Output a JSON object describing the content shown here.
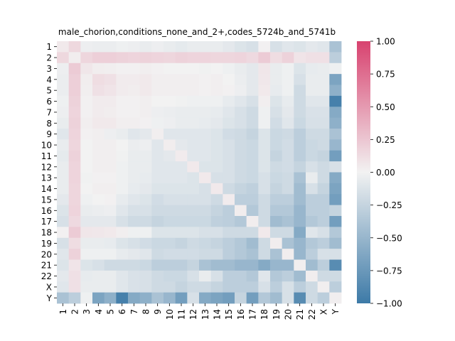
{
  "chart_data": {
    "type": "heatmap",
    "title": "male_chorion,conditions_none_and_2+,codes_5724b_and_5741b",
    "xlabel": "",
    "ylabel": "",
    "labels": [
      "1",
      "2",
      "3",
      "4",
      "5",
      "6",
      "7",
      "8",
      "9",
      "10",
      "11",
      "12",
      "13",
      "14",
      "15",
      "16",
      "17",
      "18",
      "19",
      "20",
      "21",
      "22",
      "X",
      "Y"
    ],
    "colorbar": {
      "range": [
        -1.0,
        1.0
      ],
      "ticks": [
        -1.0,
        -0.75,
        -0.5,
        -0.25,
        0.0,
        0.25,
        0.5,
        0.75,
        1.0
      ],
      "tick_labels": [
        "−1.00",
        "−0.75",
        "−0.50",
        "−0.25",
        "0.00",
        "0.25",
        "0.50",
        "0.75",
        "1.00"
      ]
    },
    "colormap": {
      "negative": "#3d7aa7",
      "center": "#f2f2f2",
      "positive": "#d8426f"
    },
    "values": [
      [
        0.05,
        0.15,
        -0.03,
        -0.04,
        -0.04,
        -0.02,
        -0.03,
        -0.05,
        -0.03,
        -0.05,
        -0.07,
        -0.05,
        -0.05,
        -0.05,
        -0.08,
        -0.12,
        -0.15,
        0.01,
        -0.15,
        -0.1,
        -0.12,
        -0.08,
        -0.1,
        -0.4
      ],
      [
        0.15,
        0.03,
        0.16,
        0.2,
        0.2,
        0.18,
        0.17,
        0.18,
        0.17,
        0.16,
        0.18,
        0.17,
        0.17,
        0.16,
        0.16,
        0.17,
        0.14,
        0.22,
        0.12,
        0.18,
        0.08,
        0.1,
        0.1,
        -0.3
      ],
      [
        -0.03,
        0.22,
        0.07,
        0.03,
        0.02,
        0.01,
        0.01,
        0.02,
        0.01,
        0.0,
        0.0,
        0.0,
        -0.01,
        0.0,
        -0.02,
        -0.05,
        -0.08,
        0.07,
        -0.05,
        -0.02,
        -0.12,
        -0.06,
        -0.05,
        -0.02
      ],
      [
        -0.04,
        0.2,
        0.03,
        0.12,
        0.1,
        0.04,
        0.04,
        0.05,
        0.02,
        0.02,
        0.02,
        0.02,
        0.01,
        0.02,
        0.0,
        -0.04,
        -0.08,
        0.06,
        -0.05,
        -0.02,
        -0.15,
        -0.05,
        -0.05,
        -0.65
      ],
      [
        -0.04,
        0.2,
        0.02,
        0.1,
        0.08,
        0.04,
        0.03,
        0.05,
        0.02,
        0.02,
        0.02,
        0.02,
        0.01,
        0.02,
        0.01,
        -0.03,
        -0.08,
        0.05,
        -0.06,
        -0.02,
        -0.2,
        -0.05,
        -0.05,
        -0.55
      ],
      [
        -0.02,
        0.18,
        0.01,
        0.04,
        0.04,
        0.01,
        0.01,
        0.02,
        0.0,
        0.0,
        -0.01,
        -0.02,
        -0.02,
        -0.02,
        -0.06,
        -0.1,
        -0.15,
        0.02,
        -0.12,
        -0.06,
        -0.2,
        -0.1,
        -0.1,
        -0.95
      ],
      [
        -0.03,
        0.17,
        0.01,
        0.04,
        0.03,
        0.01,
        0.01,
        0.02,
        -0.03,
        -0.04,
        -0.05,
        -0.05,
        -0.05,
        -0.06,
        -0.1,
        -0.15,
        -0.2,
        -0.02,
        -0.15,
        -0.08,
        -0.2,
        -0.14,
        -0.14,
        -0.6
      ],
      [
        -0.05,
        0.18,
        0.02,
        0.05,
        0.05,
        0.02,
        0.02,
        0.01,
        -0.02,
        -0.03,
        -0.05,
        -0.05,
        -0.06,
        -0.08,
        -0.12,
        -0.15,
        -0.2,
        -0.02,
        -0.18,
        -0.1,
        -0.22,
        -0.15,
        -0.15,
        -0.55
      ],
      [
        -0.1,
        0.17,
        0.01,
        0.02,
        -0.03,
        -0.05,
        -0.1,
        -0.08,
        0.02,
        -0.1,
        -0.1,
        -0.1,
        -0.1,
        -0.12,
        -0.18,
        -0.2,
        -0.25,
        -0.12,
        -0.22,
        -0.2,
        -0.3,
        -0.2,
        -0.2,
        -0.4
      ],
      [
        -0.05,
        0.16,
        0.0,
        0.02,
        0.02,
        0.0,
        -0.04,
        -0.03,
        -0.1,
        0.03,
        -0.08,
        -0.1,
        -0.1,
        -0.12,
        -0.15,
        -0.2,
        -0.22,
        -0.12,
        -0.22,
        -0.18,
        -0.3,
        -0.22,
        -0.2,
        -0.5
      ],
      [
        -0.07,
        0.18,
        0.0,
        0.02,
        0.02,
        -0.01,
        -0.05,
        -0.05,
        -0.1,
        -0.08,
        0.04,
        -0.1,
        -0.1,
        -0.12,
        -0.15,
        -0.2,
        -0.22,
        -0.12,
        -0.25,
        -0.18,
        -0.3,
        -0.22,
        -0.25,
        -0.7
      ],
      [
        -0.05,
        0.17,
        0.0,
        0.02,
        0.02,
        -0.02,
        -0.05,
        -0.05,
        -0.1,
        -0.1,
        -0.1,
        0.05,
        -0.12,
        -0.12,
        -0.15,
        -0.2,
        -0.22,
        -0.12,
        -0.2,
        -0.18,
        -0.25,
        -0.15,
        -0.2,
        -0.15
      ],
      [
        -0.05,
        0.17,
        -0.01,
        0.01,
        0.01,
        -0.02,
        -0.05,
        -0.06,
        -0.1,
        -0.1,
        -0.1,
        -0.12,
        0.05,
        -0.15,
        -0.15,
        -0.2,
        -0.22,
        -0.15,
        -0.22,
        -0.2,
        -0.4,
        -0.05,
        -0.2,
        -0.6
      ],
      [
        -0.05,
        0.16,
        0.0,
        0.02,
        0.02,
        -0.02,
        -0.06,
        -0.08,
        -0.12,
        -0.12,
        -0.12,
        -0.12,
        -0.15,
        0.05,
        -0.2,
        -0.25,
        -0.28,
        -0.15,
        -0.25,
        -0.2,
        -0.45,
        -0.15,
        -0.25,
        -0.65
      ],
      [
        -0.08,
        0.16,
        -0.02,
        0.0,
        0.01,
        -0.06,
        -0.1,
        -0.12,
        -0.18,
        -0.15,
        -0.15,
        -0.15,
        -0.15,
        -0.2,
        0.04,
        -0.3,
        -0.3,
        -0.2,
        -0.3,
        -0.3,
        -0.45,
        -0.3,
        -0.3,
        -0.7
      ],
      [
        -0.12,
        0.17,
        -0.05,
        -0.04,
        -0.03,
        -0.1,
        -0.15,
        -0.15,
        -0.2,
        -0.2,
        -0.2,
        -0.2,
        -0.2,
        -0.25,
        -0.3,
        0.03,
        -0.35,
        -0.2,
        -0.35,
        -0.35,
        -0.5,
        -0.3,
        -0.3,
        -0.25
      ],
      [
        -0.15,
        0.14,
        -0.08,
        -0.08,
        -0.08,
        -0.15,
        -0.2,
        -0.2,
        -0.25,
        -0.22,
        -0.22,
        -0.22,
        -0.22,
        -0.28,
        -0.3,
        -0.35,
        0.03,
        -0.2,
        -0.45,
        -0.4,
        -0.5,
        -0.35,
        -0.3,
        -0.7
      ],
      [
        0.01,
        0.22,
        0.07,
        0.06,
        0.05,
        0.02,
        -0.02,
        -0.02,
        -0.12,
        -0.12,
        -0.12,
        -0.12,
        -0.15,
        -0.15,
        -0.2,
        -0.2,
        -0.2,
        0.05,
        -0.2,
        -0.2,
        -0.6,
        -0.1,
        -0.15,
        -0.35
      ],
      [
        -0.15,
        0.12,
        -0.05,
        -0.05,
        -0.06,
        -0.12,
        -0.15,
        -0.18,
        -0.22,
        -0.22,
        -0.25,
        -0.2,
        -0.22,
        -0.25,
        -0.3,
        -0.35,
        -0.45,
        -0.2,
        0.03,
        -0.4,
        -0.5,
        -0.35,
        -0.3,
        -0.45
      ],
      [
        -0.1,
        0.18,
        -0.02,
        -0.02,
        -0.02,
        -0.06,
        -0.08,
        -0.1,
        -0.2,
        -0.18,
        -0.18,
        -0.18,
        -0.2,
        -0.2,
        -0.3,
        -0.35,
        -0.4,
        -0.2,
        -0.4,
        0.03,
        -0.5,
        -0.3,
        -0.15,
        -0.15
      ],
      [
        -0.12,
        0.08,
        -0.12,
        -0.15,
        -0.2,
        -0.2,
        -0.2,
        -0.22,
        -0.3,
        -0.3,
        -0.3,
        -0.25,
        -0.4,
        -0.45,
        -0.45,
        -0.5,
        -0.5,
        -0.6,
        -0.5,
        -0.5,
        0.02,
        -0.45,
        -0.3,
        -0.85
      ],
      [
        -0.08,
        0.1,
        -0.06,
        -0.05,
        -0.05,
        -0.1,
        -0.14,
        -0.15,
        -0.2,
        -0.22,
        -0.22,
        -0.15,
        -0.05,
        -0.15,
        -0.3,
        -0.3,
        -0.35,
        -0.1,
        -0.35,
        -0.3,
        -0.45,
        0.03,
        -0.2,
        -0.2
      ],
      [
        -0.1,
        0.1,
        -0.05,
        -0.05,
        -0.05,
        -0.1,
        -0.14,
        -0.15,
        -0.2,
        -0.2,
        -0.25,
        -0.2,
        -0.2,
        -0.25,
        -0.3,
        -0.3,
        -0.3,
        -0.15,
        -0.3,
        -0.15,
        -0.3,
        -0.2,
        0.02,
        -0.3
      ],
      [
        -0.4,
        -0.3,
        -0.02,
        -0.65,
        -0.55,
        -0.95,
        -0.6,
        -0.55,
        -0.4,
        -0.5,
        -0.7,
        -0.15,
        -0.6,
        -0.65,
        -0.7,
        -0.25,
        -0.7,
        -0.35,
        -0.45,
        -0.15,
        -0.85,
        -0.2,
        -0.3,
        0.02
      ]
    ]
  }
}
